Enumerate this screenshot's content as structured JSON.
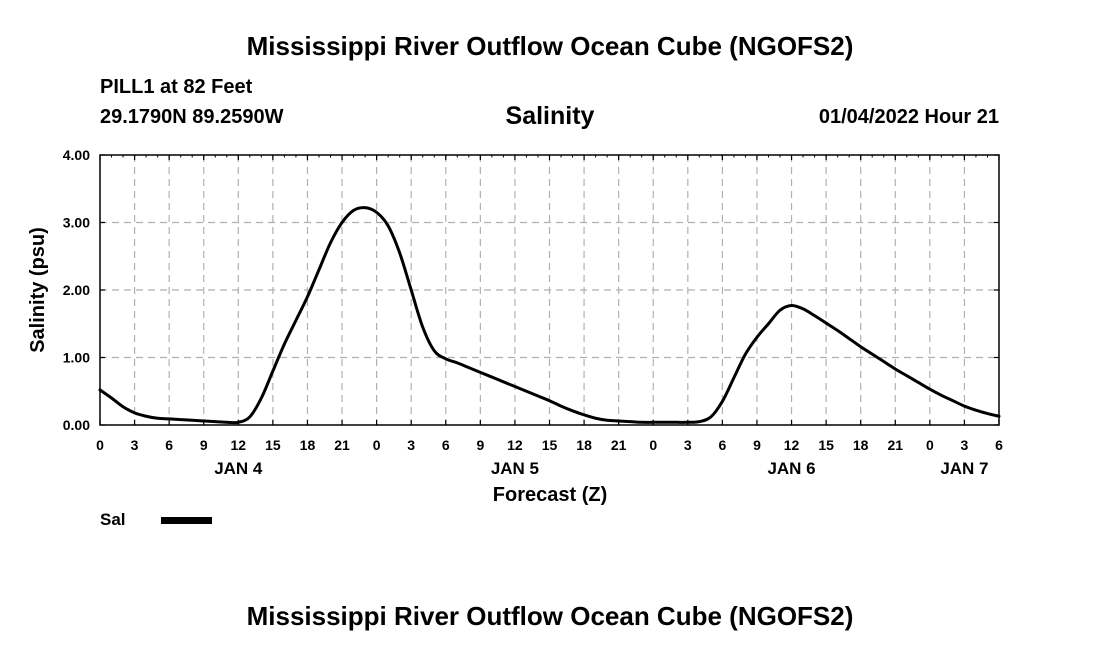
{
  "page": {
    "title_top": "Mississippi River Outflow Ocean Cube (NGOFS2)",
    "title_bottom": "Mississippi River Outflow Ocean Cube (NGOFS2)",
    "station": "PILL1 at 82 Feet",
    "coords": "29.1790N  89.2590W",
    "variable": "Salinity",
    "datetime": "01/04/2022 Hour 21"
  },
  "colors": {
    "line": "#000000",
    "grid": "#b0b0b0",
    "background": "#ffffff"
  },
  "chart_data": {
    "type": "line",
    "title": "Salinity",
    "xlabel": "Forecast (Z)",
    "ylabel": "Salinity (psu)",
    "xlim": [
      0,
      78
    ],
    "ylim": [
      0,
      4
    ],
    "ytick_values": [
      0,
      1,
      2,
      3,
      4
    ],
    "ytick_labels": [
      "0.00",
      "1.00",
      "2.00",
      "3.00",
      "4.00"
    ],
    "xtick_values": [
      0,
      3,
      6,
      9,
      12,
      15,
      18,
      21,
      24,
      27,
      30,
      33,
      36,
      39,
      42,
      45,
      48,
      51,
      54,
      57,
      60,
      63,
      66,
      69,
      72,
      75,
      78
    ],
    "xtick_labels": [
      "0",
      "3",
      "6",
      "9",
      "12",
      "15",
      "18",
      "21",
      "0",
      "3",
      "6",
      "9",
      "12",
      "15",
      "18",
      "21",
      "0",
      "3",
      "6",
      "9",
      "12",
      "15",
      "18",
      "21",
      "0",
      "3",
      "6"
    ],
    "date_labels": [
      {
        "label": "JAN 4",
        "x": 12
      },
      {
        "label": "JAN 5",
        "x": 36
      },
      {
        "label": "JAN 6",
        "x": 60
      },
      {
        "label": "JAN 7",
        "x": 75
      }
    ],
    "grid": true,
    "legend": {
      "position": "bottom-left",
      "entries": [
        "Sal"
      ]
    },
    "series": [
      {
        "name": "Sal",
        "x": [
          0,
          1,
          2,
          3,
          4,
          5,
          6,
          7,
          8,
          9,
          10,
          11,
          12,
          13,
          14,
          15,
          16,
          17,
          18,
          19,
          20,
          21,
          22,
          23,
          24,
          25,
          26,
          27,
          28,
          29,
          30,
          31,
          32,
          33,
          34,
          35,
          36,
          37,
          38,
          39,
          40,
          41,
          42,
          43,
          44,
          45,
          46,
          47,
          48,
          49,
          50,
          51,
          52,
          53,
          54,
          55,
          56,
          57,
          58,
          59,
          60,
          61,
          62,
          63,
          64,
          65,
          66,
          67,
          68,
          69,
          70,
          71,
          72,
          73,
          74,
          75,
          76,
          77,
          78
        ],
        "values": [
          0.52,
          0.4,
          0.27,
          0.18,
          0.13,
          0.1,
          0.09,
          0.08,
          0.07,
          0.06,
          0.05,
          0.04,
          0.04,
          0.12,
          0.4,
          0.8,
          1.2,
          1.55,
          1.9,
          2.3,
          2.7,
          3.0,
          3.18,
          3.22,
          3.15,
          2.95,
          2.55,
          2.0,
          1.45,
          1.1,
          0.98,
          0.92,
          0.85,
          0.78,
          0.71,
          0.64,
          0.57,
          0.5,
          0.43,
          0.36,
          0.28,
          0.21,
          0.15,
          0.1,
          0.07,
          0.06,
          0.05,
          0.04,
          0.04,
          0.04,
          0.04,
          0.04,
          0.05,
          0.12,
          0.35,
          0.7,
          1.05,
          1.3,
          1.5,
          1.7,
          1.77,
          1.72,
          1.62,
          1.51,
          1.4,
          1.28,
          1.16,
          1.05,
          0.94,
          0.83,
          0.73,
          0.63,
          0.53,
          0.44,
          0.36,
          0.28,
          0.22,
          0.17,
          0.13
        ]
      }
    ]
  }
}
